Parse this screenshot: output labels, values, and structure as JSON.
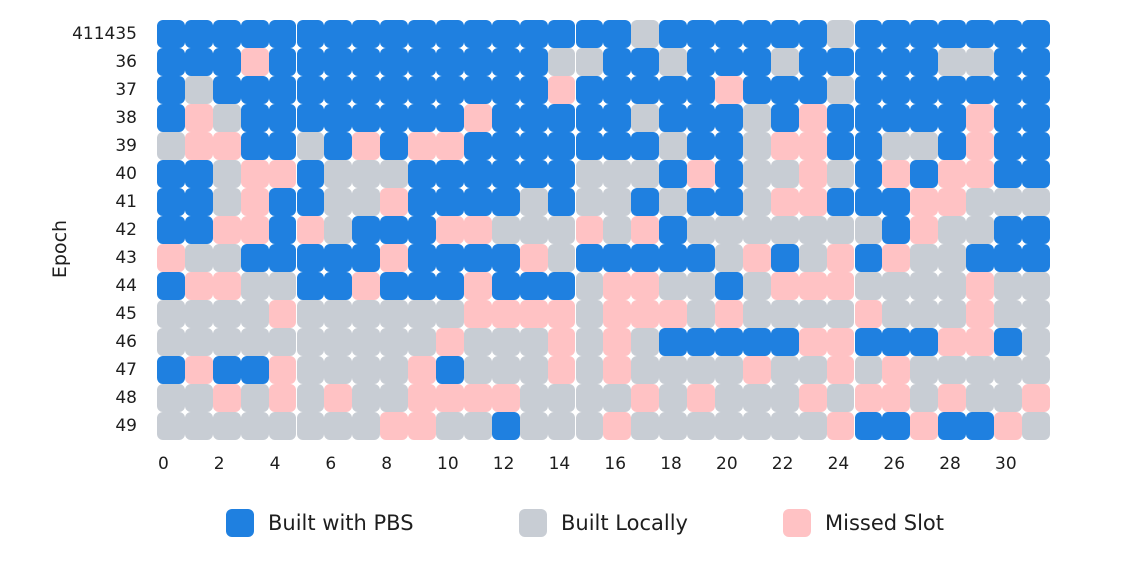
{
  "chart_data": {
    "type": "heatmap",
    "title": "",
    "xlabel": "",
    "ylabel": "Epoch",
    "y_categories": [
      "411435",
      "36",
      "37",
      "38",
      "39",
      "40",
      "41",
      "42",
      "43",
      "44",
      "45",
      "46",
      "47",
      "48",
      "49"
    ],
    "x_categories": [
      0,
      1,
      2,
      3,
      4,
      5,
      6,
      7,
      8,
      9,
      10,
      11,
      12,
      13,
      14,
      15,
      16,
      17,
      18,
      19,
      20,
      21,
      22,
      23,
      24,
      25,
      26,
      27,
      28,
      29,
      30,
      31
    ],
    "x_tick_labels": [
      "0",
      "2",
      "4",
      "6",
      "8",
      "10",
      "12",
      "14",
      "16",
      "18",
      "20",
      "22",
      "24",
      "26",
      "28",
      "30"
    ],
    "state_codes": {
      "B": "Built with PBS",
      "L": "Built Locally",
      "M": "Missed Slot"
    },
    "rows": [
      "BBBBBBBBBBBBBBBBBLBBBBBBLBBBBBBB",
      "BBBMBBBBBBBBBBLLBBLBBBLBBBBBLLBB",
      "BLBBBBBBBBBBBBMBBBBBMBBBLBBBBBBB",
      "BMLBBBBBBBBMBBBBBLBBBLBMBBBBBMBB",
      "LMMBBLBMBMMBBBBBBBLBBLMMBBLLBMBB",
      "BBLMMBLLLBBBBBBLLLBMBLLMLBMBMMBB",
      "BBLMBBLLMBBBBLBLLBLBBLMMBBBMMLLL",
      "BBMMBMLBBBMMLLLMLMBLLLLLLLBMLLBB",
      "MLLBBBBBMBBBBMLBBBBBLMBLMBMLLBBB",
      "BMMLLBBMBBBMBBBLMMLLBLMMMLLLLMLL",
      "LLLLMLLLLLLMMMMLMMMLMLLLLMLLLMLL",
      "LLLLLLLLLLMLLLMLMLBBBBBMMBBBMMBL",
      "BMBBMLLLLMBLLLMLMLLLLMLLMLMLLLLL",
      "LLMLMLMLLMMMMLLLLMLMLLLMLMMLMLLM",
      "LLLLLLLLMMLLBLLLMLLLLLLLMBBMBBML"
    ],
    "legend": [
      {
        "code": "B",
        "label": "Built with PBS",
        "color": "#1f80e0"
      },
      {
        "code": "L",
        "label": "Built Locally",
        "color": "#c8cdd4"
      },
      {
        "code": "M",
        "label": "Missed Slot",
        "color": "#ffc2c4"
      }
    ],
    "legend_position": "bottom",
    "grid": false
  }
}
